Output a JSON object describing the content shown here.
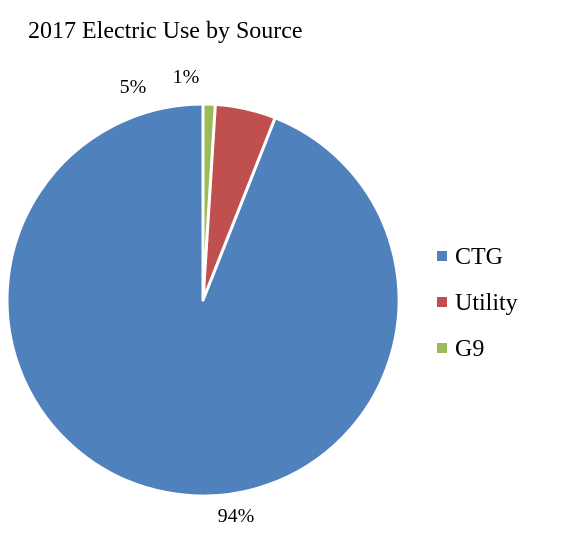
{
  "chart_data": {
    "type": "pie",
    "title": "2017 Electric Use by Source",
    "categories": [
      "CTG",
      "Utility",
      "G9"
    ],
    "values": [
      94,
      5,
      1
    ],
    "data_labels": [
      "94%",
      "5%",
      "1%"
    ],
    "colors": [
      "#4F81BD",
      "#C0504D",
      "#9BBB59"
    ],
    "start_angle": "12 o'clock",
    "direction": "counterclockwise",
    "legend_position": "right",
    "slice_border_color": "#FFFFFF"
  }
}
